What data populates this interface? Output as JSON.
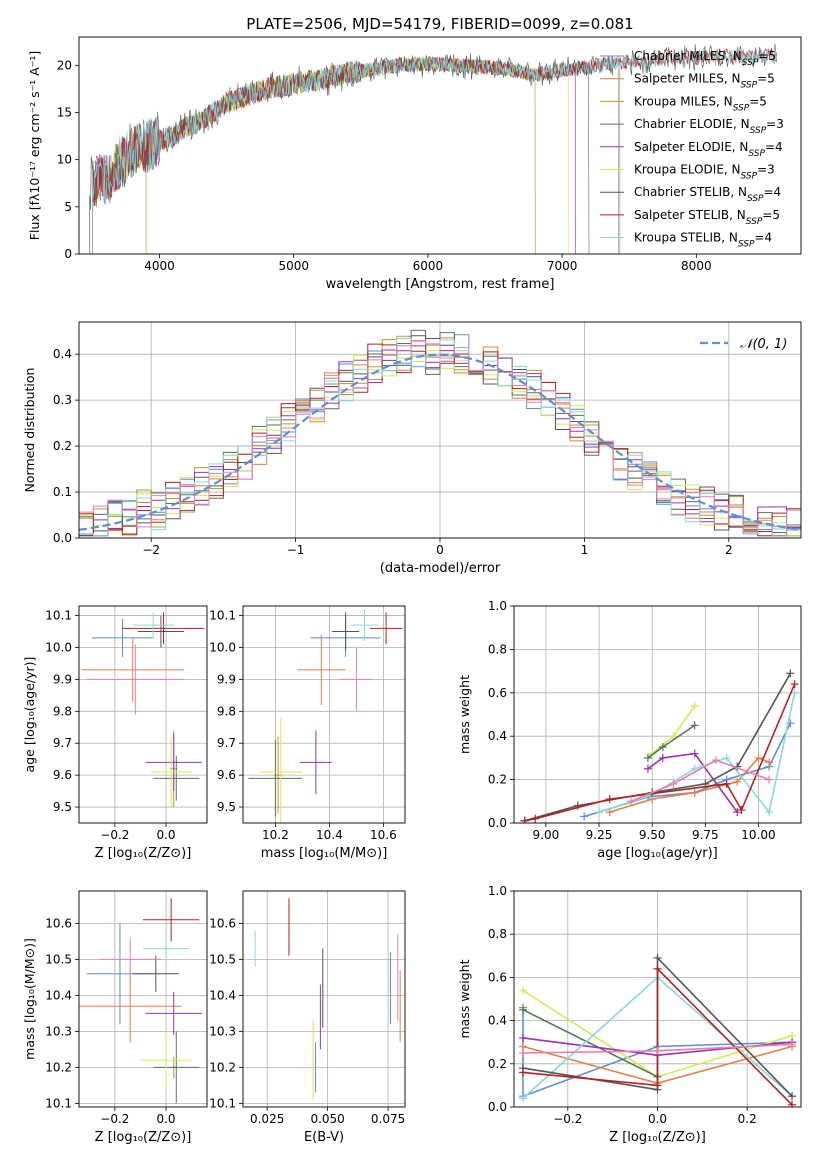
{
  "figure_title": "PLATE=2506, MJD=54179, FIBERID=0099, z=0.081",
  "colors": {
    "Chabrier MILES": "#5b8fd6",
    "Salpeter MILES": "#e0804a",
    "Kroupa MILES": "#b79b2a",
    "Chabrier ELODIE": "#4f7a55",
    "Salpeter ELODIE": "#9a32b8",
    "Kroupa ELODIE": "#d5e85a",
    "Chabrier STELIB": "#555555",
    "Salpeter STELIB": "#b22222",
    "Kroupa STELIB": "#86d9dc",
    "extra_hist": "#e87fb0",
    "normal_curve": "#5b8fd6"
  },
  "chart_data": [
    {
      "id": "spectrum",
      "type": "line",
      "xlabel": "wavelength [Angstrom, rest frame]",
      "ylabel": "Flux [fλ10⁻¹⁷ erg cm⁻² s⁻¹ A⁻¹]",
      "xlim": [
        3400,
        8780
      ],
      "ylim": [
        0,
        23
      ],
      "xticks": [
        4000,
        5000,
        6000,
        7000,
        8000
      ],
      "yticks": [
        0,
        5,
        10,
        15,
        20
      ],
      "legend_position": "top-right",
      "legend": [
        {
          "model": "Chabrier MILES",
          "n": "5"
        },
        {
          "model": "Salpeter MILES",
          "n": "5"
        },
        {
          "model": "Kroupa MILES",
          "n": "5"
        },
        {
          "model": "Chabrier ELODIE",
          "n": "3"
        },
        {
          "model": "Salpeter ELODIE",
          "n": "4"
        },
        {
          "model": "Kroupa ELODIE",
          "n": "3"
        },
        {
          "model": "Chabrier STELIB",
          "n": "4"
        },
        {
          "model": "Salpeter STELIB",
          "n": "5"
        },
        {
          "model": "Kroupa STELIB",
          "n": "4"
        }
      ],
      "continuum": [
        [
          3500,
          7.5
        ],
        [
          3600,
          8.0
        ],
        [
          3700,
          9.5
        ],
        [
          3800,
          11.0
        ],
        [
          3900,
          11.5
        ],
        [
          4000,
          12.0
        ],
        [
          4100,
          12.5
        ],
        [
          4200,
          13.5
        ],
        [
          4300,
          14.0
        ],
        [
          4400,
          15.0
        ],
        [
          4500,
          16.0
        ],
        [
          4600,
          16.5
        ],
        [
          4700,
          17.0
        ],
        [
          4800,
          17.5
        ],
        [
          5000,
          18.0
        ],
        [
          5200,
          18.5
        ],
        [
          5400,
          19.2
        ],
        [
          5600,
          19.6
        ],
        [
          5800,
          20.0
        ],
        [
          6000,
          20.2
        ],
        [
          6200,
          20.0
        ],
        [
          6400,
          19.8
        ],
        [
          6600,
          19.6
        ],
        [
          6800,
          19.0
        ],
        [
          7000,
          19.5
        ],
        [
          7200,
          19.8
        ],
        [
          7400,
          20.3
        ],
        [
          7600,
          20.5
        ],
        [
          7800,
          20.7
        ],
        [
          8000,
          20.8
        ],
        [
          8200,
          21.0
        ],
        [
          8400,
          21.0
        ],
        [
          8600,
          21.1
        ]
      ]
    },
    {
      "id": "residual_hist",
      "type": "histogram",
      "xlabel": "(data-model)/error",
      "ylabel": "Normed distribution",
      "xlim": [
        -2.5,
        2.5
      ],
      "ylim": [
        0,
        0.47
      ],
      "xticks": [
        -2,
        -1,
        0,
        1,
        2
      ],
      "yticks": [
        0.0,
        0.1,
        0.2,
        0.3,
        0.4
      ],
      "grid": true,
      "legend_position": "top-right",
      "curve_label": "𝒩(0, 1)",
      "bin_centers": [
        -2.45,
        -2.35,
        -2.25,
        -2.15,
        -2.05,
        -1.95,
        -1.85,
        -1.75,
        -1.65,
        -1.55,
        -1.45,
        -1.35,
        -1.25,
        -1.15,
        -1.05,
        -0.95,
        -0.85,
        -0.75,
        -0.65,
        -0.55,
        -0.45,
        -0.35,
        -0.25,
        -0.15,
        -0.05,
        0.05,
        0.15,
        0.25,
        0.35,
        0.45,
        0.55,
        0.65,
        0.75,
        0.85,
        0.95,
        1.05,
        1.15,
        1.25,
        1.35,
        1.45,
        1.55,
        1.65,
        1.75,
        1.85,
        1.95,
        2.05,
        2.15,
        2.25,
        2.35,
        2.45
      ],
      "envelope": [
        0.02,
        0.03,
        0.04,
        0.05,
        0.06,
        0.06,
        0.08,
        0.09,
        0.11,
        0.13,
        0.15,
        0.17,
        0.2,
        0.22,
        0.25,
        0.27,
        0.29,
        0.32,
        0.34,
        0.36,
        0.38,
        0.39,
        0.4,
        0.41,
        0.4,
        0.41,
        0.4,
        0.39,
        0.38,
        0.36,
        0.34,
        0.32,
        0.3,
        0.27,
        0.25,
        0.22,
        0.2,
        0.17,
        0.15,
        0.13,
        0.11,
        0.09,
        0.08,
        0.07,
        0.06,
        0.05,
        0.04,
        0.03,
        0.03,
        0.02
      ]
    },
    {
      "id": "age_vs_Z",
      "type": "errorbar",
      "xlabel": "Z [log₁₀(Z/Z⊙)]",
      "ylabel": "age  [log₁₀(age/yr)]",
      "xlim": [
        -0.34,
        0.16
      ],
      "ylim": [
        9.45,
        10.13
      ],
      "xticks": [
        -0.2,
        0.0
      ],
      "yticks": [
        9.5,
        9.6,
        9.7,
        9.8,
        9.9,
        10.0,
        10.1
      ],
      "grid": true,
      "points": [
        {
          "model": "Chabrier MILES",
          "x": -0.17,
          "xerr": 0.12,
          "y": 10.03,
          "yerr": 0.06
        },
        {
          "model": "Salpeter MILES",
          "x": -0.13,
          "xerr": 0.2,
          "y": 9.93,
          "yerr": 0.1
        },
        {
          "model": "Kroupa MILES",
          "x": 0.03,
          "xerr": 0.015,
          "y": 9.62,
          "yerr": 0.12
        },
        {
          "model": "Chabrier ELODIE",
          "x": 0.04,
          "xerr": 0.09,
          "y": 9.59,
          "yerr": 0.07
        },
        {
          "model": "Salpeter ELODIE",
          "x": 0.03,
          "xerr": 0.11,
          "y": 9.64,
          "yerr": 0.09
        },
        {
          "model": "Kroupa ELODIE",
          "x": 0.02,
          "xerr": 0.08,
          "y": 9.61,
          "yerr": 0.11
        },
        {
          "model": "Chabrier STELIB",
          "x": -0.02,
          "xerr": 0.09,
          "y": 10.05,
          "yerr": 0.05
        },
        {
          "model": "Salpeter STELIB",
          "x": -0.01,
          "xerr": 0.16,
          "y": 10.06,
          "yerr": 0.05
        },
        {
          "model": "Kroupa STELIB",
          "x": -0.05,
          "xerr": 0.08,
          "y": 10.07,
          "yerr": 0.04
        },
        {
          "model": "extra",
          "x": -0.12,
          "xerr": 0.19,
          "y": 9.9,
          "yerr": 0.11
        }
      ]
    },
    {
      "id": "age_vs_mass",
      "type": "errorbar",
      "xlabel": "mass [log₁₀(M/M⊙)]",
      "ylabel": "",
      "xlim": [
        10.08,
        10.68
      ],
      "ylim": [
        9.45,
        10.13
      ],
      "xticks": [
        10.2,
        10.4,
        10.6
      ],
      "yticks": [
        9.5,
        9.6,
        9.7,
        9.8,
        9.9,
        10.0,
        10.1
      ],
      "grid": true,
      "points": [
        {
          "model": "Chabrier MILES",
          "x": 10.46,
          "xerr": 0.13,
          "y": 10.03,
          "yerr": 0.06
        },
        {
          "model": "Salpeter MILES",
          "x": 10.37,
          "xerr": 0.09,
          "y": 9.93,
          "yerr": 0.11
        },
        {
          "model": "Kroupa MILES",
          "x": 10.21,
          "xerr": 0.015,
          "y": 9.6,
          "yerr": 0.12
        },
        {
          "model": "Chabrier ELODIE",
          "x": 10.2,
          "xerr": 0.1,
          "y": 9.59,
          "yerr": 0.12
        },
        {
          "model": "Salpeter ELODIE",
          "x": 10.35,
          "xerr": 0.06,
          "y": 9.64,
          "yerr": 0.1
        },
        {
          "model": "Kroupa ELODIE",
          "x": 10.22,
          "xerr": 0.08,
          "y": 9.61,
          "yerr": 0.17
        },
        {
          "model": "Chabrier STELIB",
          "x": 10.46,
          "xerr": 0.05,
          "y": 10.05,
          "yerr": 0.06
        },
        {
          "model": "Salpeter STELIB",
          "x": 10.61,
          "xerr": 0.06,
          "y": 10.06,
          "yerr": 0.05
        },
        {
          "model": "Kroupa STELIB",
          "x": 10.53,
          "xerr": 0.05,
          "y": 10.07,
          "yerr": 0.05
        },
        {
          "model": "extra",
          "x": 10.5,
          "xerr": 0.06,
          "y": 9.9,
          "yerr": 0.1
        }
      ]
    },
    {
      "id": "weight_vs_age",
      "type": "line",
      "xlabel": "age  [log₁₀(age/yr)]",
      "ylabel": "mass weight",
      "xlim": [
        8.85,
        10.2
      ],
      "ylim": [
        0,
        1
      ],
      "xticks": [
        9.0,
        9.25,
        9.5,
        9.75,
        10.0
      ],
      "yticks": [
        0.0,
        0.2,
        0.4,
        0.6,
        0.8,
        1.0
      ],
      "grid": true,
      "series": [
        {
          "model": "Chabrier MILES",
          "x": [
            9.18,
            9.48,
            9.7,
            9.85,
            10.05,
            10.15
          ],
          "y": [
            0.03,
            0.12,
            0.14,
            0.2,
            0.26,
            0.46
          ]
        },
        {
          "model": "Salpeter MILES",
          "x": [
            9.3,
            9.5,
            9.7,
            9.9,
            10.0,
            10.05
          ],
          "y": [
            0.05,
            0.11,
            0.14,
            0.19,
            0.3,
            0.28
          ]
        },
        {
          "model": "Kroupa ELODIE",
          "x": [
            9.48,
            9.5,
            9.6,
            9.7
          ],
          "y": [
            0.3,
            0.32,
            0.4,
            0.54
          ]
        },
        {
          "model": "Chabrier ELODIE",
          "x": [
            9.48,
            9.55,
            9.7
          ],
          "y": [
            0.3,
            0.35,
            0.45
          ]
        },
        {
          "model": "Salpeter ELODIE",
          "x": [
            9.48,
            9.55,
            9.7,
            9.9
          ],
          "y": [
            0.25,
            0.3,
            0.32,
            0.05
          ]
        },
        {
          "model": "Kroupa STELIB",
          "x": [
            9.25,
            9.5,
            9.7,
            9.85,
            10.05,
            10.17
          ],
          "y": [
            0.05,
            0.13,
            0.25,
            0.3,
            0.05,
            0.6
          ]
        },
        {
          "model": "Chabrier STELIB",
          "x": [
            8.9,
            9.15,
            9.5,
            9.75,
            9.9,
            10.15
          ],
          "y": [
            0.01,
            0.08,
            0.14,
            0.18,
            0.26,
            0.69
          ]
        },
        {
          "model": "Salpeter STELIB",
          "x": [
            8.9,
            8.95,
            9.3,
            9.85,
            9.92,
            10.17
          ],
          "y": [
            0.01,
            0.02,
            0.11,
            0.18,
            0.06,
            0.64
          ]
        },
        {
          "model": "extra",
          "x": [
            9.4,
            9.6,
            9.8,
            10.05
          ],
          "y": [
            0.1,
            0.18,
            0.29,
            0.2
          ]
        }
      ]
    },
    {
      "id": "mass_vs_Z",
      "type": "errorbar",
      "xlabel": "Z [log₁₀(Z/Z⊙)]",
      "ylabel": "mass [log₁₀(M/M⊙)]",
      "xlim": [
        -0.34,
        0.16
      ],
      "ylim": [
        10.09,
        10.69
      ],
      "xticks": [
        -0.2,
        0.0
      ],
      "yticks": [
        10.1,
        10.2,
        10.3,
        10.4,
        10.5,
        10.6
      ],
      "grid": true,
      "points": [
        {
          "model": "Chabrier MILES",
          "x": -0.18,
          "xerr": 0.13,
          "y": 10.46,
          "yerr": 0.14
        },
        {
          "model": "Salpeter MILES",
          "x": -0.14,
          "xerr": 0.2,
          "y": 10.37,
          "yerr": 0.1
        },
        {
          "model": "Kroupa MILES",
          "x": 0.03,
          "xerr": 0.015,
          "y": 10.2,
          "yerr": 0.03
        },
        {
          "model": "Chabrier ELODIE",
          "x": 0.04,
          "xerr": 0.09,
          "y": 10.2,
          "yerr": 0.1
        },
        {
          "model": "Salpeter ELODIE",
          "x": 0.03,
          "xerr": 0.11,
          "y": 10.35,
          "yerr": 0.06
        },
        {
          "model": "Kroupa ELODIE",
          "x": -0.0,
          "xerr": 0.1,
          "y": 10.22,
          "yerr": 0.08
        },
        {
          "model": "Chabrier STELIB",
          "x": -0.04,
          "xerr": 0.09,
          "y": 10.46,
          "yerr": 0.05
        },
        {
          "model": "Salpeter STELIB",
          "x": 0.02,
          "xerr": 0.11,
          "y": 10.61,
          "yerr": 0.06
        },
        {
          "model": "Kroupa STELIB",
          "x": -0.0,
          "xerr": 0.09,
          "y": 10.53,
          "yerr": 0.05
        },
        {
          "model": "extra",
          "x": -0.14,
          "xerr": 0.12,
          "y": 10.5,
          "yerr": 0.06
        }
      ]
    },
    {
      "id": "mass_vs_EBV",
      "type": "errorbar",
      "xlabel": "E(B-V)",
      "ylabel": "",
      "xlim": [
        0.015,
        0.082
      ],
      "ylim": [
        10.09,
        10.69
      ],
      "xticks": [
        0.025,
        0.05,
        0.075
      ],
      "yticks": [
        10.1,
        10.2,
        10.3,
        10.4,
        10.5,
        10.6
      ],
      "grid": true,
      "points": [
        {
          "model": "Kroupa STELIB",
          "x": 0.02,
          "y": 10.53,
          "yerr": 0.05
        },
        {
          "model": "Salpeter STELIB",
          "x": 0.034,
          "y": 10.59,
          "yerr": 0.08
        },
        {
          "model": "Kroupa ELODIE",
          "x": 0.044,
          "y": 10.22,
          "yerr": 0.11
        },
        {
          "model": "Chabrier MILES",
          "x": 0.045,
          "y": 10.2,
          "yerr": 0.07
        },
        {
          "model": "Chabrier STELIB",
          "x": 0.048,
          "y": 10.42,
          "yerr": 0.11
        },
        {
          "model": "Salpeter ELODIE",
          "x": 0.047,
          "y": 10.34,
          "yerr": 0.09
        },
        {
          "model": "Chabrier MILES",
          "x": 0.076,
          "y": 10.42,
          "yerr": 0.1
        },
        {
          "model": "extra",
          "x": 0.079,
          "y": 10.45,
          "yerr": 0.12
        },
        {
          "model": "Salpeter MILES",
          "x": 0.08,
          "y": 10.37,
          "yerr": 0.1
        }
      ]
    },
    {
      "id": "weight_vs_Z",
      "type": "line",
      "xlabel": "Z [log₁₀(Z/Z⊙)]",
      "ylabel": "mass weight",
      "xlim": [
        -0.32,
        0.32
      ],
      "ylim": [
        0,
        1
      ],
      "xticks": [
        -0.2,
        0.0,
        0.2
      ],
      "yticks": [
        0.0,
        0.2,
        0.4,
        0.6,
        0.8,
        1.0
      ],
      "grid": true,
      "series": [
        {
          "model": "Chabrier MILES",
          "x": [
            -0.3,
            -0.3,
            0.0,
            0.3
          ],
          "y": [
            0.46,
            0.05,
            0.28,
            0.3
          ]
        },
        {
          "model": "Salpeter MILES",
          "x": [
            -0.3,
            0.0,
            0.3
          ],
          "y": [
            0.28,
            0.11,
            0.28
          ]
        },
        {
          "model": "Kroupa ELODIE",
          "x": [
            -0.3,
            0.0,
            0.3
          ],
          "y": [
            0.54,
            0.14,
            0.33
          ]
        },
        {
          "model": "Chabrier ELODIE",
          "x": [
            -0.3,
            0.0
          ],
          "y": [
            0.45,
            0.14
          ]
        },
        {
          "model": "Salpeter ELODIE",
          "x": [
            -0.3,
            0.0,
            0.3
          ],
          "y": [
            0.32,
            0.24,
            0.3
          ]
        },
        {
          "model": "Kroupa STELIB",
          "x": [
            -0.3,
            0.0,
            0.3
          ],
          "y": [
            0.04,
            0.6,
            0.05
          ]
        },
        {
          "model": "Chabrier STELIB",
          "x": [
            -0.3,
            0.0,
            0.0,
            0.3
          ],
          "y": [
            0.18,
            0.08,
            0.69,
            0.05
          ]
        },
        {
          "model": "Salpeter STELIB",
          "x": [
            -0.3,
            0.0,
            0.0,
            0.3
          ],
          "y": [
            0.16,
            0.1,
            0.64,
            0.01
          ]
        },
        {
          "model": "extra",
          "x": [
            -0.3,
            0.0,
            0.3
          ],
          "y": [
            0.25,
            0.26,
            0.29
          ]
        }
      ]
    }
  ]
}
